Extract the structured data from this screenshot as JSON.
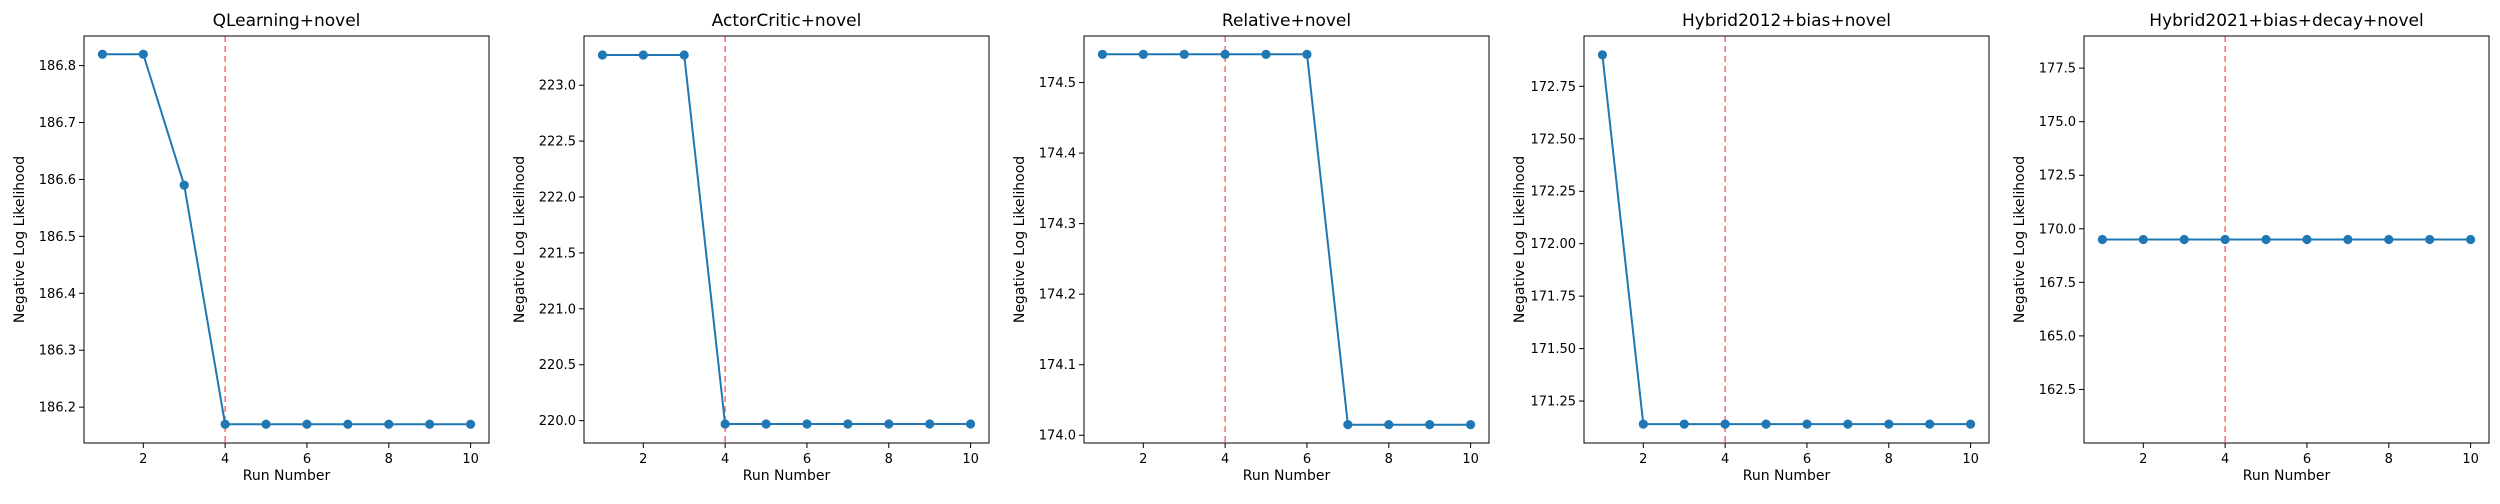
{
  "chart_data": [
    {
      "type": "line",
      "title": "QLearning+novel",
      "xlabel": "Run Number",
      "ylabel": "Negative Log Likelihood",
      "x": [
        1,
        2,
        3,
        4,
        5,
        6,
        7,
        8,
        9,
        10
      ],
      "series": [
        {
          "values": [
            186.82,
            186.82,
            186.59,
            186.17,
            186.17,
            186.17,
            186.17,
            186.17,
            186.17,
            186.17
          ]
        }
      ],
      "xlim": [
        0.55,
        10.45
      ],
      "ylim": [
        186.137,
        186.852
      ],
      "xticks": [
        2,
        4,
        6,
        8,
        10
      ],
      "xtick_labels": [
        "2",
        "4",
        "6",
        "8",
        "10"
      ],
      "yticks": [
        186.2,
        186.3,
        186.4,
        186.5,
        186.6,
        186.7,
        186.8
      ],
      "ytick_labels": [
        "186.2",
        "186.3",
        "186.4",
        "186.5",
        "186.6",
        "186.7",
        "186.8"
      ],
      "vline": 4,
      "line_color": "#1f77b4",
      "vline_color": "#ff6b6b"
    },
    {
      "type": "line",
      "title": "ActorCritic+novel",
      "xlabel": "Run Number",
      "ylabel": "Negative Log Likelihood",
      "x": [
        1,
        2,
        3,
        4,
        5,
        6,
        7,
        8,
        9,
        10
      ],
      "series": [
        {
          "values": [
            223.27,
            223.27,
            223.27,
            219.97,
            219.97,
            219.97,
            219.97,
            219.97,
            219.97,
            219.97
          ]
        }
      ],
      "xlim": [
        0.55,
        10.45
      ],
      "ylim": [
        219.8,
        223.44
      ],
      "xticks": [
        2,
        4,
        6,
        8,
        10
      ],
      "xtick_labels": [
        "2",
        "4",
        "6",
        "8",
        "10"
      ],
      "yticks": [
        220.0,
        220.5,
        221.0,
        221.5,
        222.0,
        222.5,
        223.0
      ],
      "ytick_labels": [
        "220.0",
        "220.5",
        "221.0",
        "221.5",
        "222.0",
        "222.5",
        "223.0"
      ],
      "vline": 4,
      "line_color": "#1f77b4",
      "vline_color": "#ff6b6b"
    },
    {
      "type": "line",
      "title": "Relative+novel",
      "xlabel": "Run Number",
      "ylabel": "Negative Log Likelihood",
      "x": [
        1,
        2,
        3,
        4,
        5,
        6,
        7,
        8,
        9,
        10
      ],
      "series": [
        {
          "values": [
            174.54,
            174.54,
            174.54,
            174.54,
            174.54,
            174.54,
            174.015,
            174.015,
            174.015,
            174.015
          ]
        }
      ],
      "xlim": [
        0.55,
        10.45
      ],
      "ylim": [
        173.989,
        174.566
      ],
      "xticks": [
        2,
        4,
        6,
        8,
        10
      ],
      "xtick_labels": [
        "2",
        "4",
        "6",
        "8",
        "10"
      ],
      "yticks": [
        174.0,
        174.1,
        174.2,
        174.3,
        174.4,
        174.5
      ],
      "ytick_labels": [
        "174.0",
        "174.1",
        "174.2",
        "174.3",
        "174.4",
        "174.5"
      ],
      "vline": 4,
      "line_color": "#1f77b4",
      "vline_color": "#ff6b6b"
    },
    {
      "type": "line",
      "title": "Hybrid2012+bias+novel",
      "xlabel": "Run Number",
      "ylabel": "Negative Log Likelihood",
      "x": [
        1,
        2,
        3,
        4,
        5,
        6,
        7,
        8,
        9,
        10
      ],
      "series": [
        {
          "values": [
            172.9,
            171.14,
            171.14,
            171.14,
            171.14,
            171.14,
            171.14,
            171.14,
            171.14,
            171.14
          ]
        }
      ],
      "xlim": [
        0.55,
        10.45
      ],
      "ylim": [
        171.05,
        172.99
      ],
      "xticks": [
        2,
        4,
        6,
        8,
        10
      ],
      "xtick_labels": [
        "2",
        "4",
        "6",
        "8",
        "10"
      ],
      "yticks": [
        171.25,
        171.5,
        171.75,
        172.0,
        172.25,
        172.5,
        172.75
      ],
      "ytick_labels": [
        "171.25",
        "171.50",
        "171.75",
        "172.00",
        "172.25",
        "172.50",
        "172.75"
      ],
      "vline": 4,
      "line_color": "#1f77b4",
      "vline_color": "#ff6b6b"
    },
    {
      "type": "line",
      "title": "Hybrid2021+bias+decay+novel",
      "xlabel": "Run Number",
      "ylabel": "Negative Log Likelihood",
      "x": [
        1,
        2,
        3,
        4,
        5,
        6,
        7,
        8,
        9,
        10
      ],
      "series": [
        {
          "values": [
            169.5,
            169.5,
            169.5,
            169.5,
            169.5,
            169.5,
            169.5,
            169.5,
            169.5,
            169.5
          ]
        }
      ],
      "xlim": [
        0.55,
        10.45
      ],
      "ylim": [
        160.0,
        179.0
      ],
      "xticks": [
        2,
        4,
        6,
        8,
        10
      ],
      "xtick_labels": [
        "2",
        "4",
        "6",
        "8",
        "10"
      ],
      "yticks": [
        162.5,
        165.0,
        167.5,
        170.0,
        172.5,
        175.0,
        177.5
      ],
      "ytick_labels": [
        "162.5",
        "165.0",
        "167.5",
        "170.0",
        "172.5",
        "175.0",
        "177.5"
      ],
      "vline": 4,
      "line_color": "#1f77b4",
      "vline_color": "#ff6b6b"
    }
  ]
}
